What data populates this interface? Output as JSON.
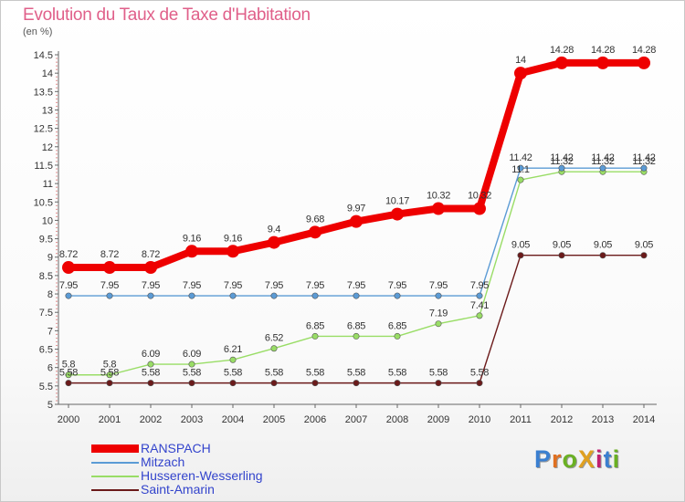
{
  "chart_data": {
    "type": "line",
    "title": "Evolution du Taux de Taxe d'Habitation",
    "ylabel": "(en %)",
    "xlabel": "",
    "x": [
      "2000",
      "2001",
      "2002",
      "2003",
      "2004",
      "2005",
      "2006",
      "2007",
      "2008",
      "2009",
      "2010",
      "2011",
      "2012",
      "2013",
      "2014"
    ],
    "ylim": [
      5,
      14.5
    ],
    "yticks": [
      "5",
      "5.5",
      "6",
      "6.5",
      "7",
      "7.5",
      "8",
      "8.5",
      "9",
      "9.5",
      "10",
      "10.5",
      "11",
      "11.5",
      "12",
      "12.5",
      "13",
      "13.5",
      "14",
      "14.5"
    ],
    "grid": false,
    "legend_position": "bottom-left",
    "series": [
      {
        "name": "RANSPACH",
        "color": "#ee0000",
        "values": [
          8.72,
          8.72,
          8.72,
          9.16,
          9.16,
          9.4,
          9.68,
          9.97,
          10.17,
          10.32,
          10.32,
          14,
          14.28,
          14.28,
          14.28
        ]
      },
      {
        "name": "Mitzach",
        "color": "#5b9bd5",
        "values": [
          7.95,
          7.95,
          7.95,
          7.95,
          7.95,
          7.95,
          7.95,
          7.95,
          7.95,
          7.95,
          7.95,
          11.42,
          11.42,
          11.42,
          11.42
        ]
      },
      {
        "name": "Husseren-Wesserling",
        "color": "#99dd66",
        "values": [
          5.8,
          5.8,
          6.09,
          6.09,
          6.21,
          6.52,
          6.85,
          6.85,
          6.85,
          7.19,
          7.41,
          11.1,
          11.32,
          11.32,
          11.32
        ]
      },
      {
        "name": "Saint-Amarin",
        "color": "#6b1a1a",
        "values": [
          5.58,
          5.58,
          5.58,
          5.58,
          5.58,
          5.58,
          5.58,
          5.58,
          5.58,
          5.58,
          5.58,
          9.05,
          9.05,
          9.05,
          9.05
        ]
      }
    ],
    "point_labels": [
      [
        "8.72",
        "8.72",
        "8.72",
        "9.16",
        "9.16",
        "9.4",
        "9.68",
        "9.97",
        "10.17",
        "10.32",
        "10.32",
        "14",
        "14.28",
        "14.28",
        "14.28"
      ],
      [
        "7.95",
        "7.95",
        "7.95",
        "7.95",
        "7.95",
        "7.95",
        "7.95",
        "7.95",
        "7.95",
        "7.95",
        "7.95",
        "11.42",
        "11.42",
        "11.42",
        "11.42"
      ],
      [
        "5.8",
        "5.8",
        "6.09",
        "6.09",
        "6.21",
        "6.52",
        "6.85",
        "6.85",
        "6.85",
        "7.19",
        "7.41",
        "11.1",
        "11.32",
        "11.32",
        "11.32"
      ],
      [
        "5.58",
        "5.58",
        "5.58",
        "5.58",
        "5.58",
        "5.58",
        "5.58",
        "5.58",
        "5.58",
        "5.58",
        "5.58",
        "9.05",
        "9.05",
        "9.05",
        "9.05"
      ]
    ]
  },
  "logo": {
    "text": "ProXiti"
  }
}
